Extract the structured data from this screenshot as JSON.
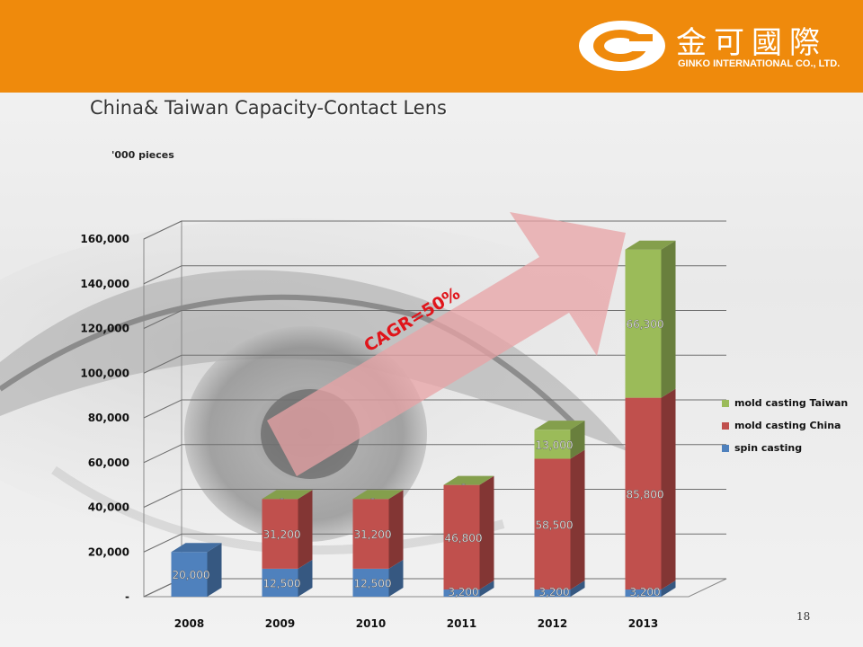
{
  "header": {
    "logo_cn": "金可國際",
    "logo_en": "GINKO INTERNATIONAL CO., LTD.",
    "bar_color": "#ef8a0c"
  },
  "slide": {
    "title": "China& Taiwan Capacity-Contact Lens",
    "units": "'000 pieces",
    "page_number": "18"
  },
  "annotation": {
    "text": "CAGR=50%",
    "text_color": "#e0151b",
    "arrow_color": "#e8a3a6"
  },
  "chart_data": {
    "type": "bar",
    "stacked": true,
    "three_d": true,
    "categories": [
      "2008",
      "2009",
      "2010",
      "2011",
      "2012",
      "2013"
    ],
    "series": [
      {
        "name": "spin casting",
        "color": "#4f81bd",
        "values": [
          20000,
          12500,
          12500,
          3200,
          3200,
          3200
        ],
        "labels": [
          "20,000",
          "12,500",
          "12,500",
          "3,200",
          "3,200",
          "3,200"
        ]
      },
      {
        "name": "mold casting China",
        "color": "#c0504d",
        "values": [
          0,
          31200,
          31200,
          46800,
          58500,
          85800
        ],
        "labels": [
          "",
          "31,200",
          "31,200",
          "46,800",
          "58,500",
          "85,800"
        ]
      },
      {
        "name": "mold casting Taiwan",
        "color": "#9bbb59",
        "values": [
          0,
          0,
          0,
          0,
          13000,
          66300
        ],
        "labels": [
          "",
          "-",
          "-",
          "-",
          "13,000",
          "66,300"
        ]
      }
    ],
    "ylim": [
      0,
      160000
    ],
    "yticks": [
      0,
      20000,
      40000,
      60000,
      80000,
      100000,
      120000,
      140000,
      160000
    ],
    "ytick_labels": [
      "-",
      "20,000",
      "40,000",
      "60,000",
      "80,000",
      "100,000",
      "120,000",
      "140,000",
      "160,000"
    ],
    "grid": true,
    "legend_position": "right"
  }
}
